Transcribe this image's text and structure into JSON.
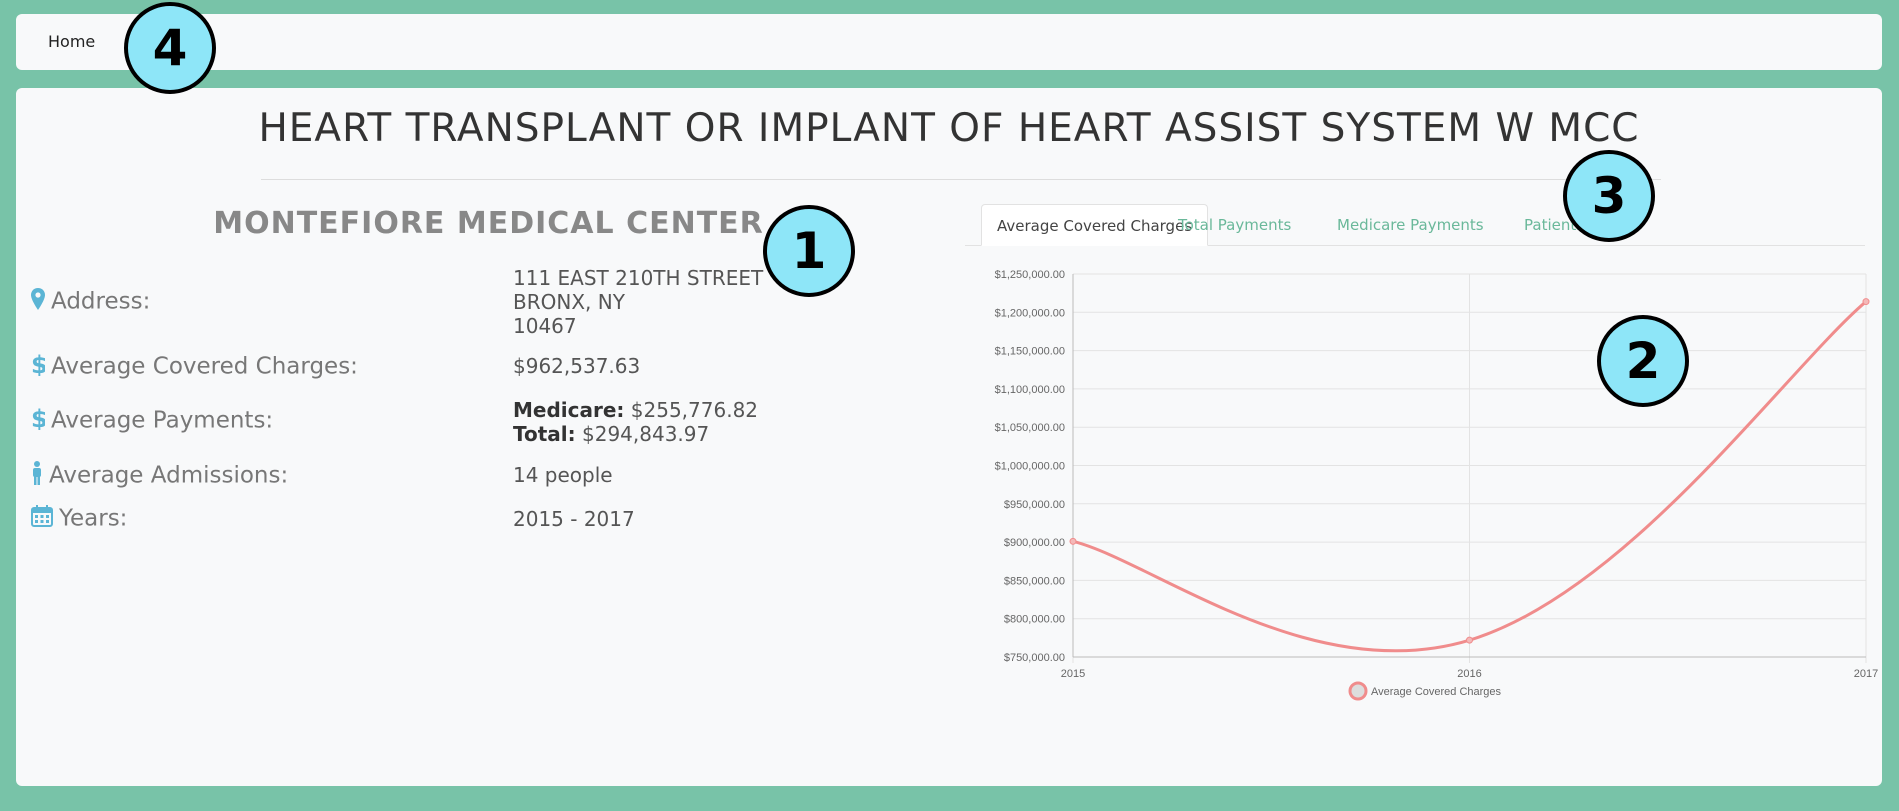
{
  "nav": {
    "home_label": "Home"
  },
  "page_title": "HEART TRANSPLANT OR IMPLANT OF HEART ASSIST SYSTEM W MCC",
  "hospital": {
    "name": "MONTEFIORE MEDICAL CENTER",
    "address": {
      "label": "Address:",
      "line1": "111 EAST 210TH STREET",
      "line2": "BRONX, NY",
      "line3": "10467"
    },
    "avg_covered_charges": {
      "label": "Average Covered Charges:",
      "value": "$962,537.63"
    },
    "avg_payments": {
      "label": "Average Payments:",
      "medicare_label": "Medicare:",
      "medicare_value": "$255,776.82",
      "total_label": "Total:",
      "total_value": "$294,843.97"
    },
    "avg_admissions": {
      "label": "Average Admissions:",
      "value": "14 people"
    },
    "years": {
      "label": "Years:",
      "value": "2015 - 2017"
    }
  },
  "tabs": [
    {
      "label": "Average Covered Charges",
      "active": true
    },
    {
      "label": "Total Payments",
      "active": false
    },
    {
      "label": "Medicare Payments",
      "active": false
    },
    {
      "label": "Patients",
      "active": false
    }
  ],
  "badges": [
    "1",
    "2",
    "3",
    "4"
  ],
  "colors": {
    "accent": "#6ab89a",
    "icon": "#5bb5d5",
    "line": "#f08c8c",
    "badge": "#8ee6f8"
  },
  "chart_data": {
    "type": "line",
    "x": [
      "2015",
      "2016",
      "2017"
    ],
    "series": [
      {
        "name": "Average Covered Charges",
        "values": [
          901000,
          772000,
          1214000
        ]
      }
    ],
    "yticks": [
      "$1,250,000.00",
      "$1,200,000.00",
      "$1,150,000.00",
      "$1,100,000.00",
      "$1,050,000.00",
      "$1,000,000.00",
      "$950,000.00",
      "$900,000.00",
      "$850,000.00",
      "$800,000.00",
      "$750,000.00"
    ],
    "ylim": [
      750000,
      1250000
    ],
    "grid": true,
    "legend": "bottom"
  }
}
